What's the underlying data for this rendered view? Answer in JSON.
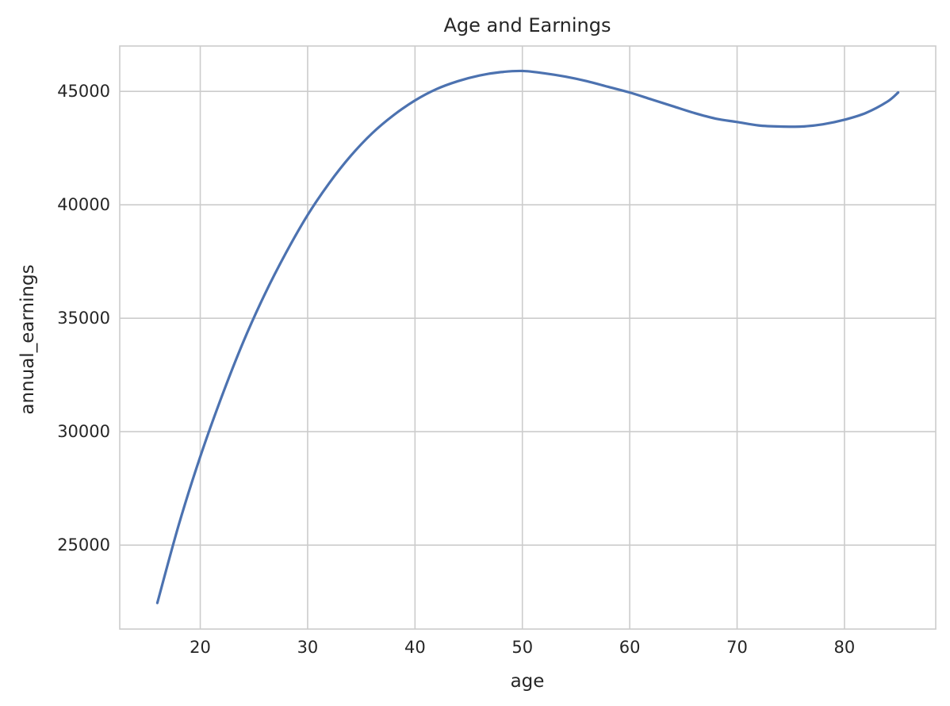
{
  "chart_data": {
    "type": "line",
    "title": "Age and Earnings",
    "xlabel": "age",
    "ylabel": "annual_earnings",
    "xlim": [
      12.5,
      88.5
    ],
    "ylim": [
      21300,
      47000
    ],
    "xticks": [
      20,
      30,
      40,
      50,
      60,
      70,
      80
    ],
    "yticks": [
      25000,
      30000,
      35000,
      40000,
      45000
    ],
    "grid": true,
    "colors": {
      "line": "#4c72b0",
      "grid": "#cccccc",
      "text": "#262626"
    },
    "series": [
      {
        "x": [
          16,
          18,
          20,
          22,
          24,
          26,
          28,
          30,
          32,
          34,
          36,
          38,
          40,
          42,
          44,
          46,
          48,
          50,
          52,
          54,
          56,
          58,
          60,
          62,
          64,
          66,
          68,
          70,
          72,
          74,
          76,
          78,
          80,
          82,
          84,
          85
        ],
        "values": [
          22450,
          25900,
          28900,
          31550,
          33950,
          36050,
          37900,
          39550,
          40950,
          42150,
          43150,
          43950,
          44600,
          45100,
          45450,
          45700,
          45850,
          45900,
          45800,
          45650,
          45450,
          45200,
          44950,
          44650,
          44350,
          44050,
          43800,
          43650,
          43500,
          43450,
          43450,
          43550,
          43750,
          44050,
          44550,
          44950
        ]
      }
    ]
  }
}
